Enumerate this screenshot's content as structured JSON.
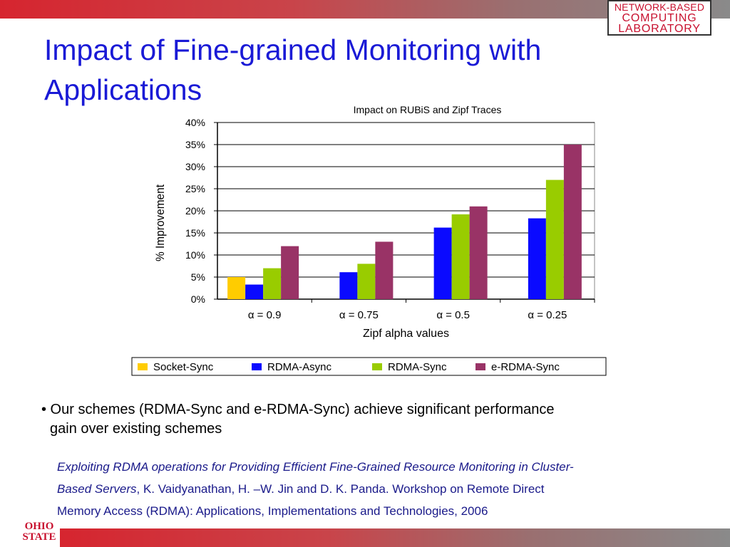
{
  "slide": {
    "title": "Impact of Fine-grained Monitoring with Applications",
    "logo_top": [
      "NETWORK-BASED",
      "COMPUTING",
      "LABORATORY"
    ],
    "logo_bottom": [
      "OHIO",
      "STATE"
    ],
    "bullet_line1": "• Our schemes (RDMA-Sync and e-RDMA-Sync) achieve significant performance",
    "bullet_line2": "gain over existing schemes",
    "citation_title_1": "Exploiting RDMA operations for Providing Efficient Fine-Grained Resource Monitoring in Cluster-",
    "citation_title_2": "Based Servers",
    "citation_rest_1": ",  K. Vaidyanathan, H. –W. Jin and D. K. Panda. Workshop on Remote Direct",
    "citation_rest_2": "Memory Access (RDMA): Applications, Implementations and Technologies, 2006",
    "colors": {
      "title": "#1a1ad6",
      "accent_red": "#c8102e"
    }
  },
  "chart_data": {
    "type": "bar",
    "title": "Impact on RUBiS and Zipf Traces",
    "xlabel": "Zipf alpha values",
    "ylabel": "% Improvement",
    "categories": [
      "α = 0.9",
      "α = 0.75",
      "α = 0.5",
      "α = 0.25"
    ],
    "ylim": [
      0,
      40
    ],
    "yticks": [
      "0%",
      "5%",
      "10%",
      "15%",
      "20%",
      "25%",
      "30%",
      "35%",
      "40%"
    ],
    "grid": true,
    "legend_position": "bottom",
    "series": [
      {
        "name": "Socket-Sync",
        "color": "#ffcc00",
        "values": [
          5,
          null,
          null,
          null
        ]
      },
      {
        "name": "RDMA-Async",
        "color": "#0a0aff",
        "values": [
          3.3,
          6.1,
          16.2,
          18.3
        ]
      },
      {
        "name": "RDMA-Sync",
        "color": "#99cc00",
        "values": [
          7,
          8,
          19.2,
          27
        ]
      },
      {
        "name": "e-RDMA-Sync",
        "color": "#993366",
        "values": [
          12,
          13,
          21,
          35
        ]
      }
    ]
  }
}
